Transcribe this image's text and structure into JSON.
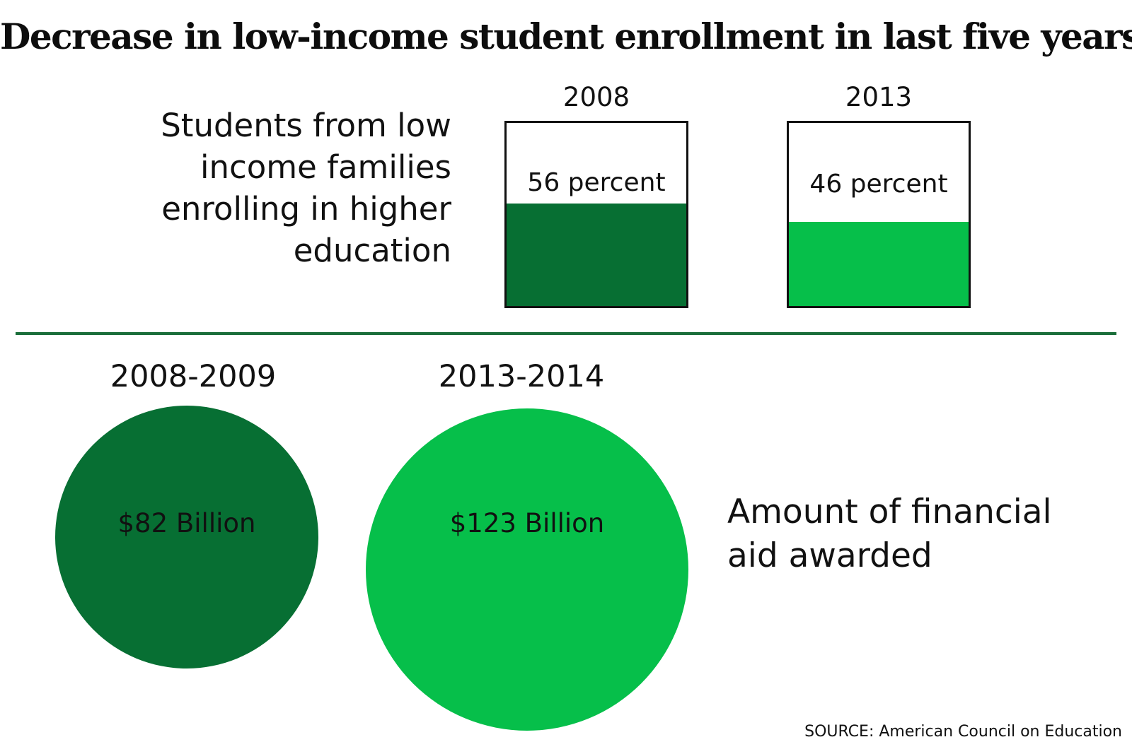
{
  "title": "Decrease in low-income student enrollment in last five years",
  "source": "SOURCE: American Council on Education",
  "colors": {
    "dark_green": "#076f33",
    "bright_green": "#06bf4a",
    "divider": "#1a6e3a"
  },
  "chart_data": [
    {
      "type": "bar",
      "label_lines": [
        "Students from low",
        "income families",
        "enrolling in higher",
        "education"
      ],
      "unit": "percent",
      "categories": [
        "2008",
        "2013"
      ],
      "values": [
        56,
        46
      ],
      "value_labels": [
        "56 percent",
        "46 percent"
      ],
      "bar_colors": [
        "#076f33",
        "#06bf4a"
      ],
      "ylim": [
        0,
        100
      ]
    },
    {
      "type": "bubble",
      "label_lines": [
        "Amount of financial",
        "aid awarded"
      ],
      "unit": "billion USD",
      "categories": [
        "2008-2009",
        "2013-2014"
      ],
      "values": [
        82,
        123
      ],
      "value_labels": [
        "$82 Billion",
        "$123 Billion"
      ],
      "bubble_colors": [
        "#076f33",
        "#06bf4a"
      ]
    }
  ]
}
